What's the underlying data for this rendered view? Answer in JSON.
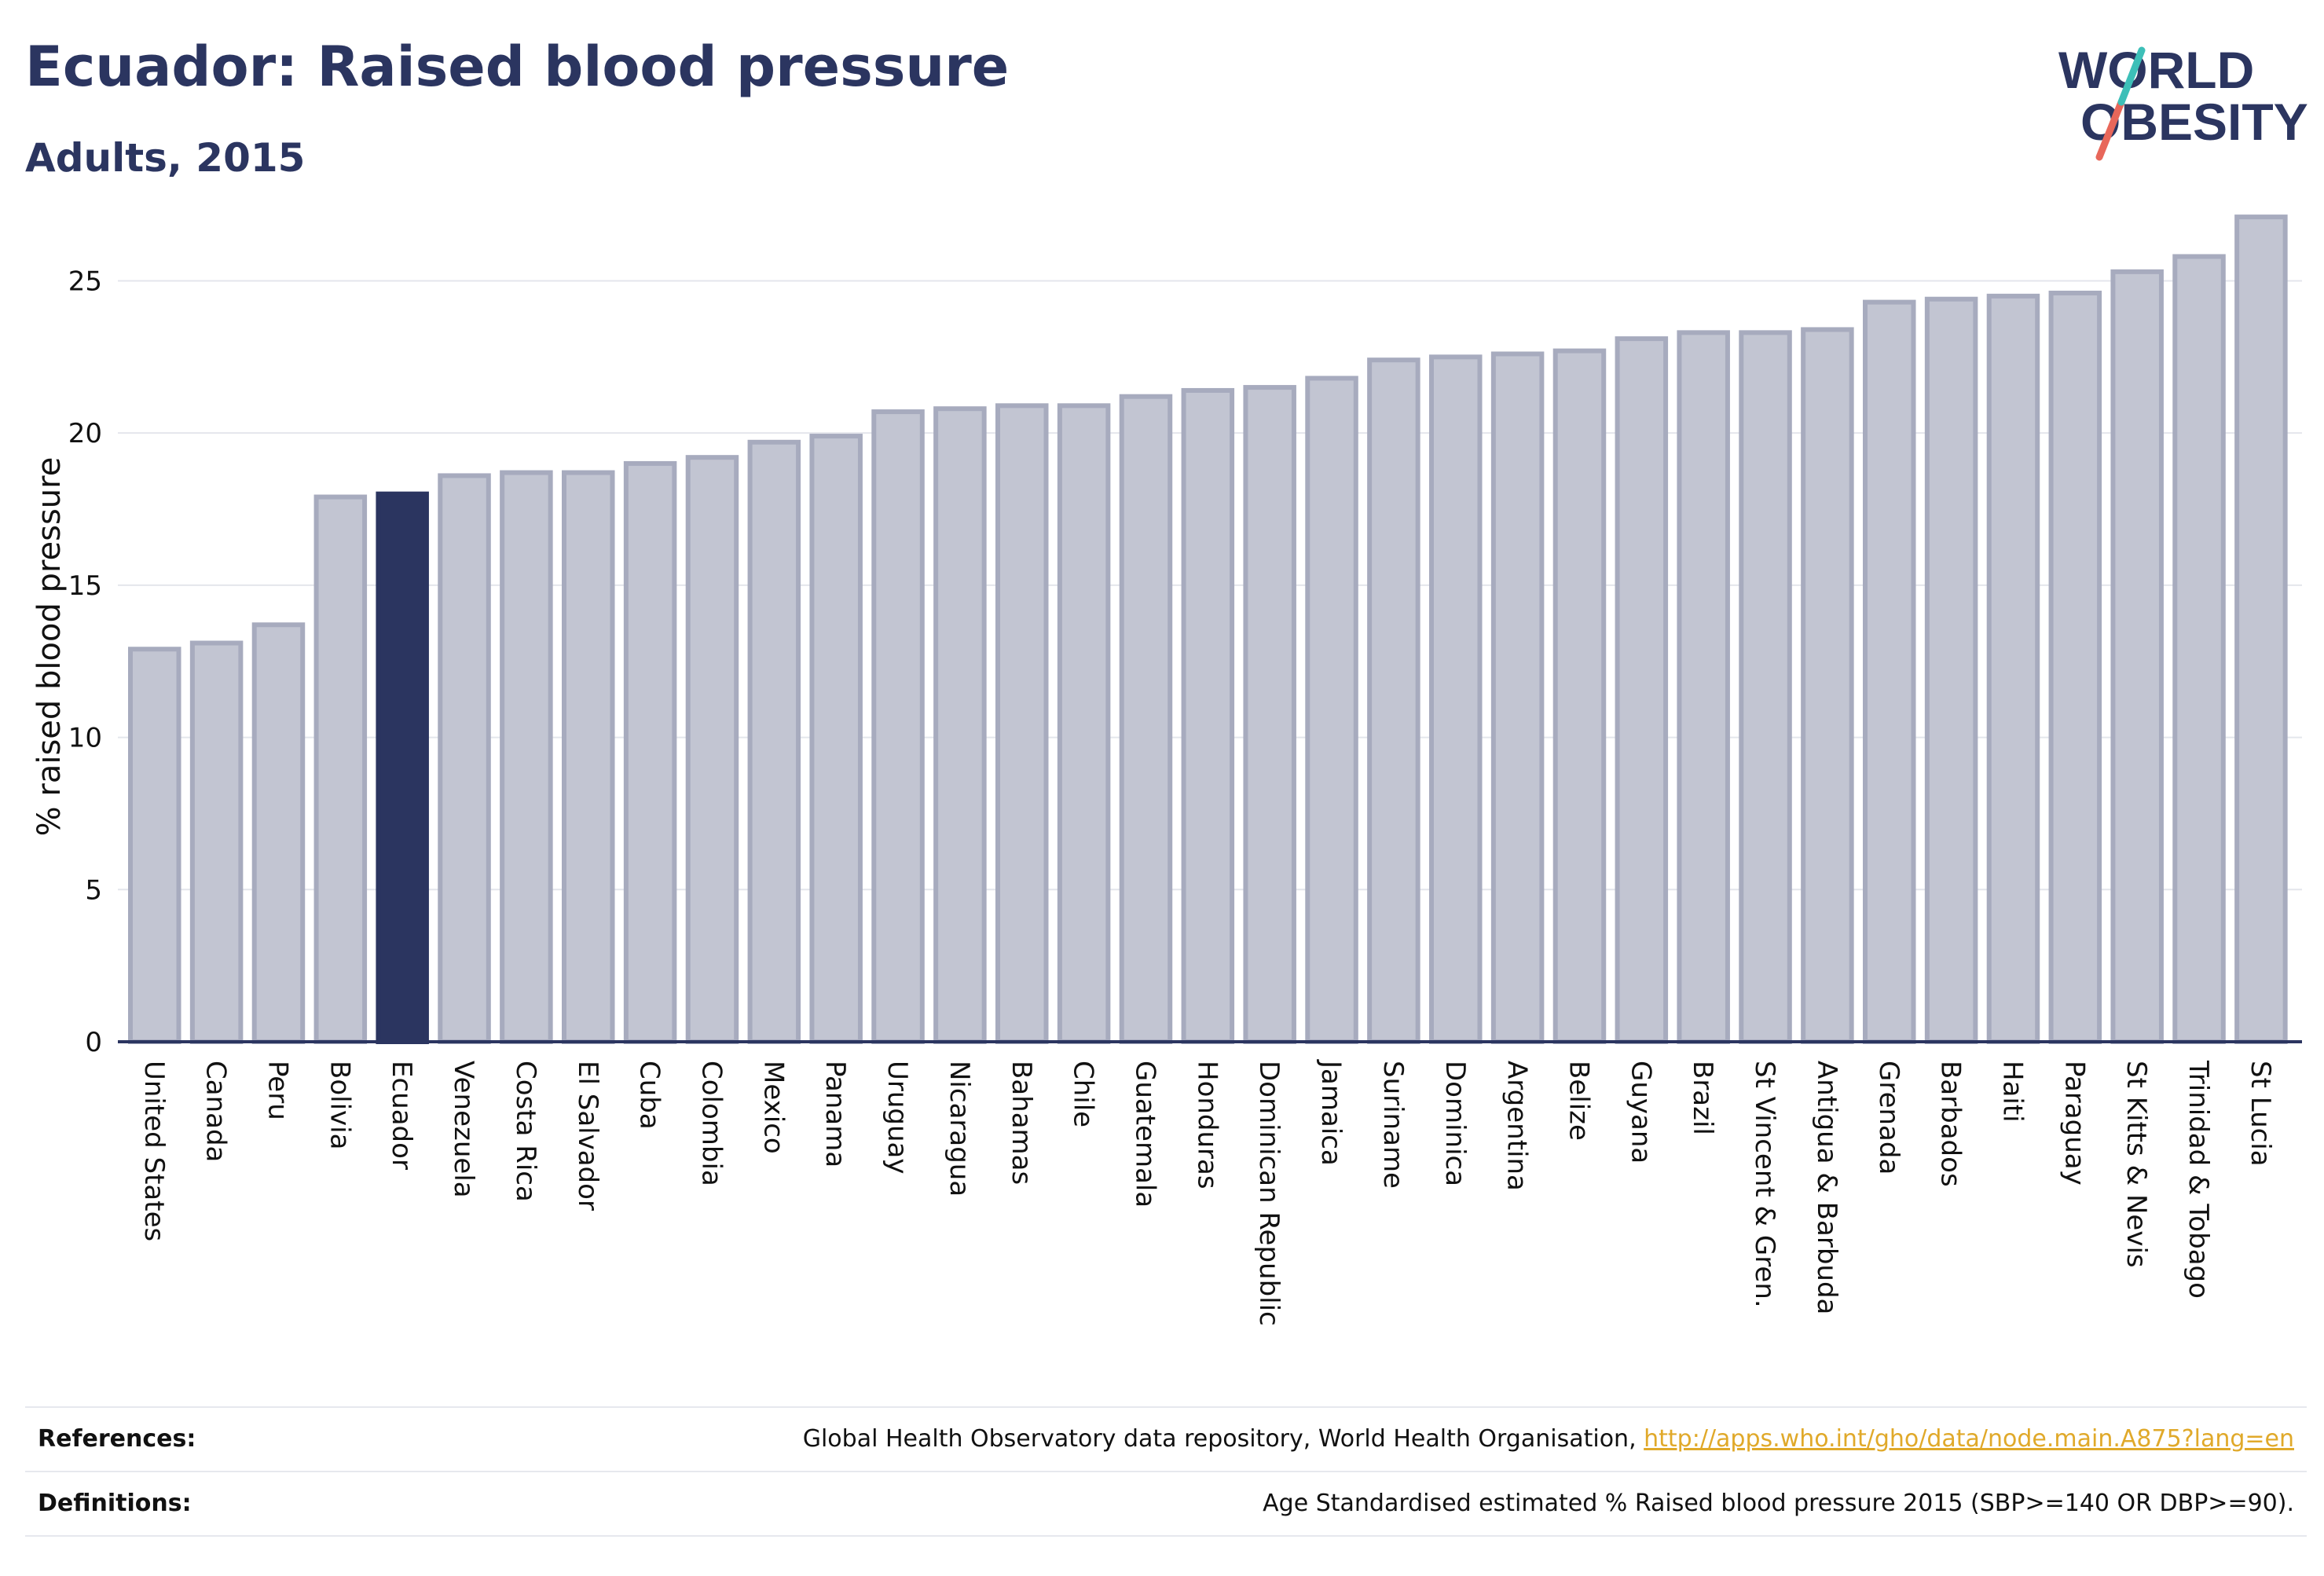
{
  "header": {
    "title": "Ecuador: Raised blood pressure",
    "subtitle": "Adults, 2015"
  },
  "logo": {
    "line1": "WORLD",
    "line2": "OBESITY"
  },
  "chart_data": {
    "type": "bar",
    "title": "Ecuador: Raised blood pressure",
    "subtitle": "Adults, 2015",
    "xlabel": "",
    "ylabel": "% raised blood pressure",
    "ylim": [
      0,
      27
    ],
    "yticks": [
      0,
      5,
      10,
      15,
      20,
      25
    ],
    "grid": true,
    "highlight": "Ecuador",
    "categories": [
      "United States",
      "Canada",
      "Peru",
      "Bolivia",
      "Ecuador",
      "Venezuela",
      "Costa Rica",
      "El Salvador",
      "Cuba",
      "Colombia",
      "Mexico",
      "Panama",
      "Uruguay",
      "Nicaragua",
      "Bahamas",
      "Chile",
      "Guatemala",
      "Honduras",
      "Dominican Republic",
      "Jamaica",
      "Suriname",
      "Dominica",
      "Argentina",
      "Belize",
      "Guyana",
      "Brazil",
      "St Vincent & Gren.",
      "Antigua & Barbuda",
      "Grenada",
      "Barbados",
      "Haiti",
      "Paraguay",
      "St Kitts & Nevis",
      "Trinidad & Tobago",
      "St Lucia"
    ],
    "values": [
      12.9,
      13.1,
      13.7,
      17.9,
      18.0,
      18.6,
      18.7,
      18.7,
      19.0,
      19.2,
      19.7,
      19.9,
      20.7,
      20.8,
      20.9,
      20.9,
      21.2,
      21.4,
      21.5,
      21.8,
      22.4,
      22.5,
      22.6,
      22.7,
      23.1,
      23.3,
      23.3,
      23.4,
      24.3,
      24.4,
      24.5,
      24.6,
      25.3,
      25.8,
      27.1
    ]
  },
  "colors": {
    "bar": "#c2c5d2",
    "bar_edge": "#a7abbe",
    "highlight": "#2b3560",
    "title": "#2b3560",
    "link": "#e0a92a",
    "logo_slash_top": "#3dbfb8",
    "logo_slash_bottom": "#e8675a"
  },
  "footer": {
    "references_label": "References:",
    "references_text": "Global Health Observatory data repository, World Health Organisation, ",
    "references_link": "http://apps.who.int/gho/data/node.main.A875?lang=en",
    "definitions_label": "Definitions:",
    "definitions_text": "Age Standardised estimated % Raised blood pressure 2015 (SBP>=140 OR DBP>=90)."
  }
}
